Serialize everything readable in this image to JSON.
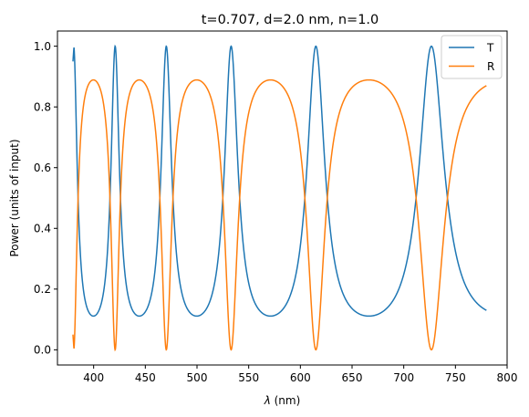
{
  "chart_data": {
    "type": "line",
    "title": "t=0.707, d=2.0 nm, n=1.0",
    "xlabel_symbol": "λ",
    "xlabel_unit": " (nm)",
    "ylabel": "Power (units of input)",
    "xlim": [
      365,
      800
    ],
    "ylim": [
      -0.05,
      1.05
    ],
    "x_ticks": [
      400,
      450,
      500,
      550,
      600,
      650,
      700,
      750,
      800
    ],
    "x_tick_labels": [
      "400",
      "450",
      "500",
      "550",
      "600",
      "650",
      "700",
      "750",
      "800"
    ],
    "y_ticks": [
      0.0,
      0.2,
      0.4,
      0.6,
      0.8,
      1.0
    ],
    "y_tick_labels": [
      "0.0",
      "0.2",
      "0.4",
      "0.6",
      "0.8",
      "1.0"
    ],
    "x_range": [
      380,
      780
    ],
    "transmission_peaks_nm": [
      381.5,
      420.9,
      470.1,
      533.0,
      615.0,
      726.8
    ],
    "t_min": 0.111,
    "t_end": 0.13,
    "legend_position": "upper right",
    "grid": false,
    "series": [
      {
        "name": "T",
        "color": "#1f77b4"
      },
      {
        "name": "R",
        "color": "#ff7f0e"
      }
    ]
  }
}
